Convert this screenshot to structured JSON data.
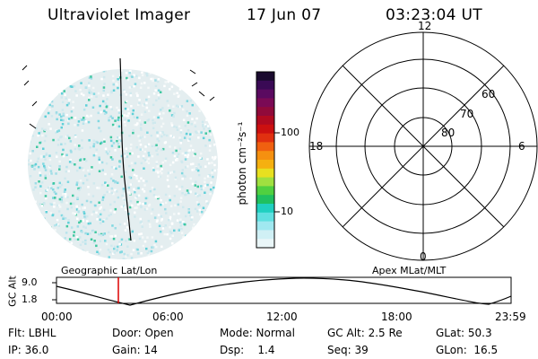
{
  "header": {
    "title": "Ultraviolet Imager",
    "date": "17 Jun 07",
    "time": "03:23:04 UT"
  },
  "colorbar": {
    "unit_label": "photon cm⁻²s⁻¹",
    "ticks": [
      "100",
      "10"
    ],
    "colors": [
      "#1a0a2e",
      "#3a0a55",
      "#5a0a60",
      "#7a0a55",
      "#900a3a",
      "#b00a20",
      "#cc1010",
      "#e03010",
      "#f06010",
      "#f59010",
      "#f5b010",
      "#e8e020",
      "#a0e040",
      "#50d040",
      "#20c060",
      "#20d0c0",
      "#60e0e0",
      "#a0e8f0",
      "#d0f0f5",
      "#eaf6f8"
    ]
  },
  "polar_plot": {
    "mlt_labels": [
      "12",
      "6",
      "0",
      "18"
    ],
    "lat_labels": [
      "60",
      "70",
      "80"
    ]
  },
  "timeline": {
    "ylabel": "GC Alt",
    "left_label": "Geographic Lat/Lon",
    "right_label": "Apex MLat/MLT",
    "yticks": [
      "9.0",
      "1.8"
    ],
    "xticks": [
      "00:00",
      "06:00",
      "12:00",
      "18:00",
      "23:59"
    ],
    "current_time_marker_color": "#dd0000"
  },
  "status": {
    "row1": [
      {
        "text": "Flt: LBHL"
      },
      {
        "text": "Door: Open"
      },
      {
        "text": "Mode: Normal"
      },
      {
        "text": "GC Alt: 2.5 Re"
      },
      {
        "text": "GLat:  50.3"
      }
    ],
    "row2": [
      {
        "text": "IP: 36.0"
      },
      {
        "text": "Gain: 14"
      },
      {
        "text": "Dsp:    1.4"
      },
      {
        "text": "Seq: 39"
      },
      {
        "text": "GLon:  16.5"
      }
    ]
  }
}
